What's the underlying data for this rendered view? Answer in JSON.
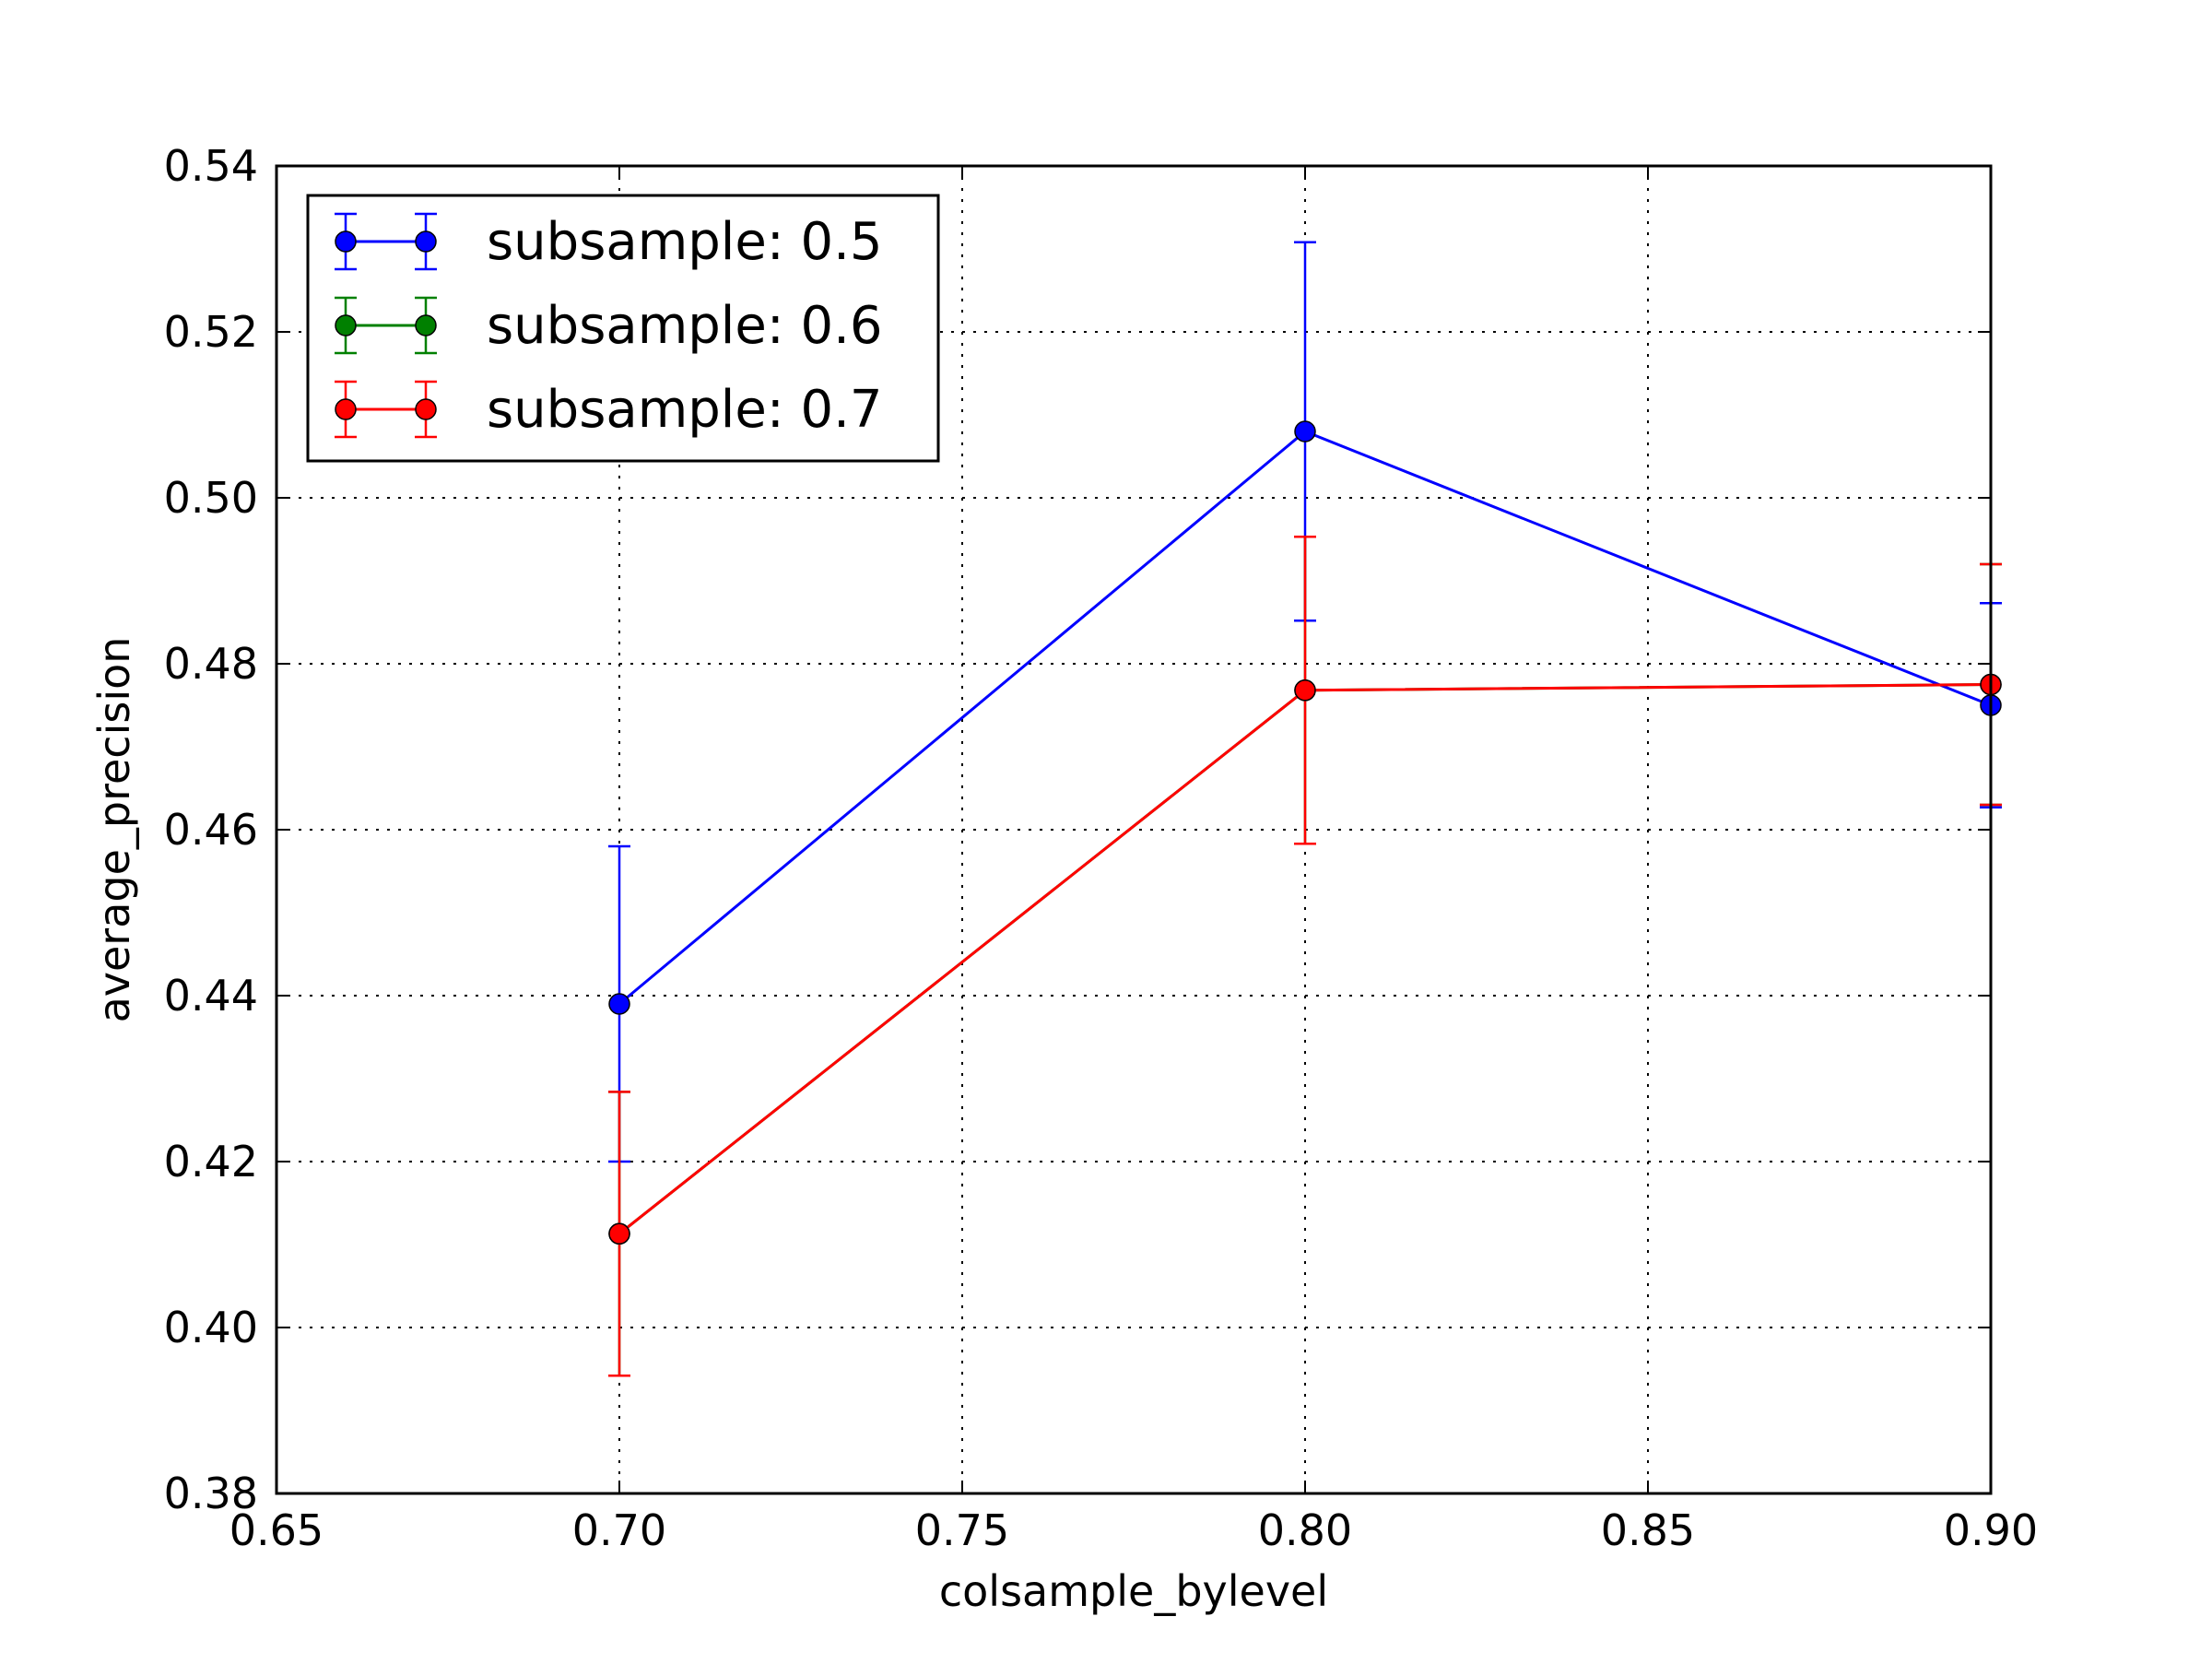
{
  "chart_data": {
    "type": "line",
    "title": "",
    "xlabel": "colsample_bylevel",
    "ylabel": "average_precision",
    "xlim": [
      0.65,
      0.9
    ],
    "ylim": [
      0.38,
      0.54
    ],
    "xticks": [
      "0.65",
      "0.70",
      "0.75",
      "0.80",
      "0.85",
      "0.90"
    ],
    "yticks": [
      "0.38",
      "0.40",
      "0.42",
      "0.44",
      "0.46",
      "0.48",
      "0.50",
      "0.52",
      "0.54"
    ],
    "grid": true,
    "legend_position": "top-left",
    "series": [
      {
        "name": "subsample: 0.5",
        "color": "#0000ff",
        "x": [
          0.7,
          0.8,
          0.9
        ],
        "y": [
          0.439,
          0.508,
          0.475
        ],
        "yerr": [
          0.019,
          0.0228,
          0.0123
        ]
      },
      {
        "name": "subsample: 0.6",
        "color": "#008000",
        "x": [
          0.7,
          0.8,
          0.9
        ],
        "y": [
          0.4113,
          0.4768,
          0.4775
        ],
        "yerr": [
          0.0171,
          0.0185,
          0.0145
        ]
      },
      {
        "name": "subsample: 0.7",
        "color": "#ff0000",
        "x": [
          0.7,
          0.8,
          0.9
        ],
        "y": [
          0.4113,
          0.4768,
          0.4775
        ],
        "yerr": [
          0.0171,
          0.0185,
          0.0145
        ]
      }
    ]
  }
}
